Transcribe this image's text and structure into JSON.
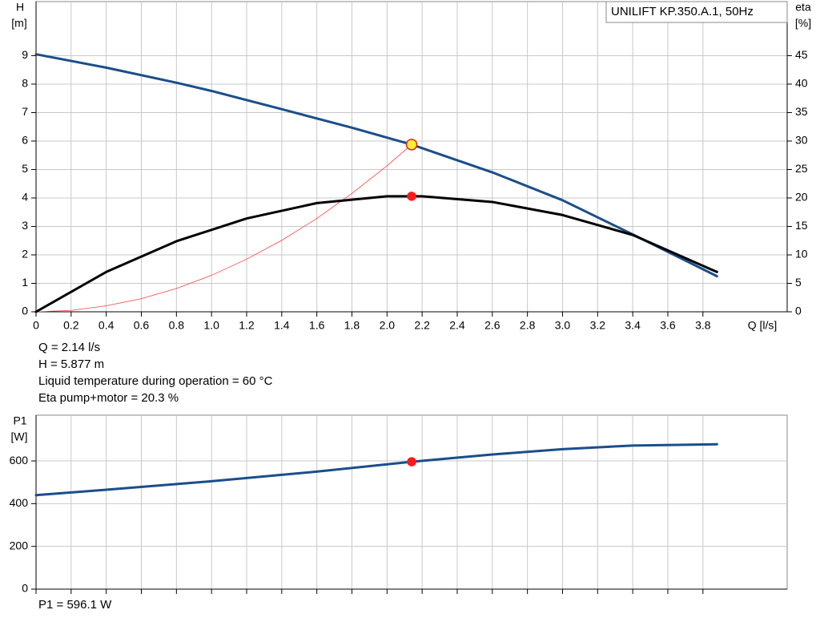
{
  "chart_data": [
    {
      "type": "line",
      "title": "UNILIFT KP.350.A.1, 50Hz",
      "xlabel": "Q [l/s]",
      "ylabel": "H",
      "yunit": "[m]",
      "y2label": "eta",
      "y2unit": "[%]",
      "xlim": [
        0,
        4.28
      ],
      "xticks": [
        0,
        0.2,
        0.4,
        0.6,
        0.8,
        {
          "value": 1.0,
          "label": "1.0"
        },
        1.2,
        1.4,
        1.6,
        1.8,
        {
          "value": 2.0,
          "label": "2.0"
        },
        2.2,
        2.4,
        2.6,
        2.8,
        {
          "value": 3.0,
          "label": "3.0"
        },
        3.2,
        3.4,
        3.6,
        3.8
      ],
      "ylim": [
        0,
        10.9
      ],
      "yticks": [
        0,
        1,
        2,
        3,
        4,
        5,
        6,
        7,
        8,
        9
      ],
      "y2lim": [
        0,
        54.5
      ],
      "y2ticks": [
        0,
        5,
        10,
        15,
        20,
        25,
        30,
        35,
        40,
        45
      ],
      "grid": true,
      "series": [
        {
          "color": "#ff4040",
          "width": 0.8,
          "x": [
            0,
            0.2,
            0.4,
            0.6,
            0.8,
            1.0,
            1.2,
            1.4,
            1.6,
            1.8,
            2.0,
            2.14
          ],
          "values": [
            0,
            0.05,
            0.21,
            0.46,
            0.82,
            1.28,
            1.85,
            2.51,
            3.28,
            4.16,
            5.13,
            5.877
          ]
        },
        {
          "color": "#1a4e8a",
          "width": 3,
          "x": [
            0,
            0.4,
            0.8,
            1.0,
            1.4,
            1.8,
            2.14,
            2.6,
            3.0,
            3.4,
            3.88
          ],
          "values": [
            9.05,
            8.58,
            8.05,
            7.76,
            7.12,
            6.47,
            5.877,
            4.9,
            3.92,
            2.72,
            1.25
          ]
        },
        {
          "color": "#000000",
          "width": 3,
          "axis": "y2",
          "x": [
            0,
            0.4,
            0.8,
            1.2,
            1.6,
            2.0,
            2.2,
            2.6,
            3.0,
            3.4,
            3.88
          ],
          "values": [
            0,
            7,
            12.4,
            16.4,
            19.1,
            20.3,
            20.3,
            19.3,
            17,
            13.5,
            7
          ]
        }
      ],
      "points": [
        {
          "x": 2.14,
          "y": 20.3,
          "axis": "y2",
          "fill": "#ff1a1a",
          "stroke": "#ff1a1a"
        },
        {
          "x": 2.14,
          "y": 5.877,
          "fill": "#ffee33",
          "stroke": "#e02020"
        }
      ],
      "annotations": [
        "Q = 2.14 l/s",
        "H = 5.877 m",
        "Liquid temperature during operation = 60 °C",
        "Eta pump+motor = 20.3 %"
      ]
    },
    {
      "type": "line",
      "ylabel": "P1",
      "yunit": "[W]",
      "xlim": [
        0,
        4.28
      ],
      "ylim": [
        0,
        814
      ],
      "yticks": [
        0,
        200,
        400,
        600
      ],
      "grid": true,
      "gridx": [
        0,
        0.2,
        0.4,
        0.6,
        0.8,
        1.0,
        1.2,
        1.4,
        1.6,
        1.8,
        2.0,
        2.2,
        2.4,
        2.6,
        2.8,
        3.0,
        3.2,
        3.4,
        3.6,
        3.8
      ],
      "series": [
        {
          "color": "#1a4e8a",
          "width": 3,
          "x": [
            0,
            0.4,
            1.0,
            1.6,
            2.14,
            2.6,
            3.0,
            3.4,
            3.88
          ],
          "values": [
            440,
            465,
            505,
            550,
            596.1,
            630,
            655,
            672,
            678
          ]
        }
      ],
      "points": [
        {
          "x": 2.14,
          "y": 596.1,
          "fill": "#ff1a1a",
          "stroke": "#ff1a1a"
        }
      ],
      "annotations": [
        "P1 = 596.1 W"
      ]
    }
  ]
}
